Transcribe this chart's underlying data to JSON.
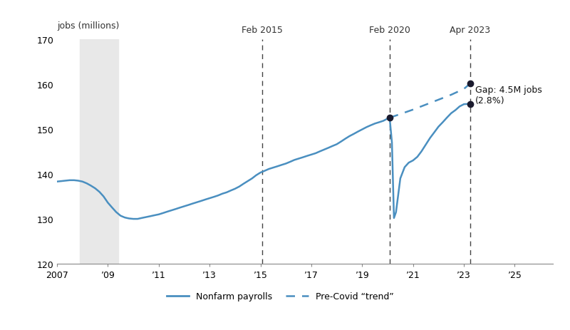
{
  "ylabel_text": "jobs (millions)",
  "ylim": [
    120,
    170
  ],
  "yticks": [
    120,
    130,
    140,
    150,
    160,
    170
  ],
  "xlim": [
    2007.0,
    2026.5
  ],
  "xticks": [
    2007,
    2009,
    2011,
    2013,
    2015,
    2017,
    2019,
    2021,
    2023,
    2025
  ],
  "xticklabels": [
    "2007",
    "’09",
    "’11",
    "’13",
    "’15",
    "’17",
    "’19",
    "’21",
    "’23",
    "’25"
  ],
  "recession_start": 2007.9,
  "recession_end": 2009.4,
  "vline_dates": [
    2015.08,
    2020.08,
    2023.25
  ],
  "vline_labels": [
    "Feb 2015",
    "Feb 2020",
    "Apr 2023"
  ],
  "line_color": "#4a8fc0",
  "trend_color": "#4a8fc0",
  "dot_color": "#1a1a2e",
  "gap_text": "Gap: 4.5M jobs\n(2.8%)",
  "legend_line_label": "Nonfarm payrolls",
  "legend_dash_label": "Pre-Covid “trend”",
  "nonfarm_data": [
    [
      2007.0,
      138.3
    ],
    [
      2007.17,
      138.4
    ],
    [
      2007.33,
      138.5
    ],
    [
      2007.5,
      138.6
    ],
    [
      2007.67,
      138.6
    ],
    [
      2007.83,
      138.5
    ],
    [
      2008.0,
      138.3
    ],
    [
      2008.17,
      137.9
    ],
    [
      2008.33,
      137.4
    ],
    [
      2008.5,
      136.8
    ],
    [
      2008.67,
      136.0
    ],
    [
      2008.83,
      135.0
    ],
    [
      2009.0,
      133.6
    ],
    [
      2009.17,
      132.5
    ],
    [
      2009.33,
      131.5
    ],
    [
      2009.5,
      130.7
    ],
    [
      2009.67,
      130.3
    ],
    [
      2009.83,
      130.1
    ],
    [
      2010.0,
      130.0
    ],
    [
      2010.17,
      130.0
    ],
    [
      2010.33,
      130.2
    ],
    [
      2010.5,
      130.4
    ],
    [
      2010.67,
      130.6
    ],
    [
      2010.83,
      130.8
    ],
    [
      2011.0,
      131.0
    ],
    [
      2011.17,
      131.3
    ],
    [
      2011.33,
      131.6
    ],
    [
      2011.5,
      131.9
    ],
    [
      2011.67,
      132.2
    ],
    [
      2011.83,
      132.5
    ],
    [
      2012.0,
      132.8
    ],
    [
      2012.17,
      133.1
    ],
    [
      2012.33,
      133.4
    ],
    [
      2012.5,
      133.7
    ],
    [
      2012.67,
      134.0
    ],
    [
      2012.83,
      134.3
    ],
    [
      2013.0,
      134.6
    ],
    [
      2013.17,
      134.9
    ],
    [
      2013.33,
      135.2
    ],
    [
      2013.5,
      135.6
    ],
    [
      2013.67,
      135.9
    ],
    [
      2013.83,
      136.3
    ],
    [
      2014.0,
      136.7
    ],
    [
      2014.17,
      137.2
    ],
    [
      2014.33,
      137.8
    ],
    [
      2014.5,
      138.4
    ],
    [
      2014.67,
      139.0
    ],
    [
      2014.83,
      139.7
    ],
    [
      2015.0,
      140.3
    ],
    [
      2015.17,
      140.7
    ],
    [
      2015.33,
      141.1
    ],
    [
      2015.5,
      141.4
    ],
    [
      2015.67,
      141.7
    ],
    [
      2015.83,
      142.0
    ],
    [
      2016.0,
      142.3
    ],
    [
      2016.17,
      142.7
    ],
    [
      2016.33,
      143.1
    ],
    [
      2016.5,
      143.4
    ],
    [
      2016.67,
      143.7
    ],
    [
      2016.83,
      144.0
    ],
    [
      2017.0,
      144.3
    ],
    [
      2017.17,
      144.6
    ],
    [
      2017.33,
      145.0
    ],
    [
      2017.5,
      145.4
    ],
    [
      2017.67,
      145.8
    ],
    [
      2017.83,
      146.2
    ],
    [
      2018.0,
      146.6
    ],
    [
      2018.17,
      147.2
    ],
    [
      2018.33,
      147.8
    ],
    [
      2018.5,
      148.4
    ],
    [
      2018.67,
      148.9
    ],
    [
      2018.83,
      149.4
    ],
    [
      2019.0,
      149.9
    ],
    [
      2019.17,
      150.4
    ],
    [
      2019.33,
      150.8
    ],
    [
      2019.5,
      151.2
    ],
    [
      2019.67,
      151.5
    ],
    [
      2019.83,
      151.8
    ],
    [
      2020.0,
      152.3
    ],
    [
      2020.08,
      152.5
    ],
    [
      2020.17,
      147.0
    ],
    [
      2020.25,
      130.2
    ],
    [
      2020.33,
      131.5
    ],
    [
      2020.5,
      139.0
    ],
    [
      2020.67,
      141.5
    ],
    [
      2020.83,
      142.5
    ],
    [
      2021.0,
      143.0
    ],
    [
      2021.17,
      143.8
    ],
    [
      2021.33,
      145.0
    ],
    [
      2021.5,
      146.5
    ],
    [
      2021.67,
      148.0
    ],
    [
      2021.83,
      149.2
    ],
    [
      2022.0,
      150.5
    ],
    [
      2022.17,
      151.5
    ],
    [
      2022.33,
      152.5
    ],
    [
      2022.5,
      153.5
    ],
    [
      2022.67,
      154.2
    ],
    [
      2022.83,
      155.0
    ],
    [
      2023.0,
      155.5
    ],
    [
      2023.25,
      155.6
    ]
  ],
  "trend_data": [
    [
      2020.08,
      152.5
    ],
    [
      2020.5,
      153.3
    ],
    [
      2021.0,
      154.3
    ],
    [
      2021.5,
      155.4
    ],
    [
      2022.0,
      156.5
    ],
    [
      2022.5,
      157.6
    ],
    [
      2023.0,
      158.9
    ],
    [
      2023.25,
      160.1
    ]
  ],
  "feb2020_val": 152.5,
  "apr2023_actual": 155.6,
  "apr2023_trend": 160.1
}
